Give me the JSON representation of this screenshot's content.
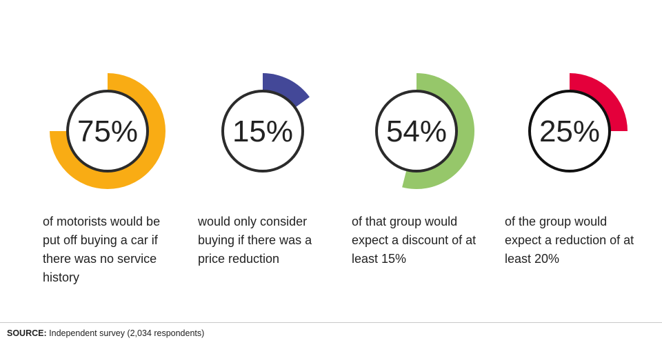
{
  "chart_data": {
    "type": "pie",
    "stats": [
      {
        "value": 75,
        "label": "75%",
        "description": "of motorists would be put off buying a car if there was no service history",
        "color": "#F9AC14"
      },
      {
        "value": 15,
        "label": "15%",
        "description": "would only consider buying if there was a price reduction",
        "color": "#434898"
      },
      {
        "value": 54,
        "label": "54%",
        "description": "of that group would expect a discount of at least 15%",
        "color": "#96C76A"
      },
      {
        "value": 25,
        "label": "25%",
        "description": "of the group would expect a reduction of at least 20%",
        "color": "#E4003B"
      }
    ]
  },
  "source": {
    "prefix": "SOURCE:",
    "text": "Independent survey (2,034 respondents)"
  }
}
